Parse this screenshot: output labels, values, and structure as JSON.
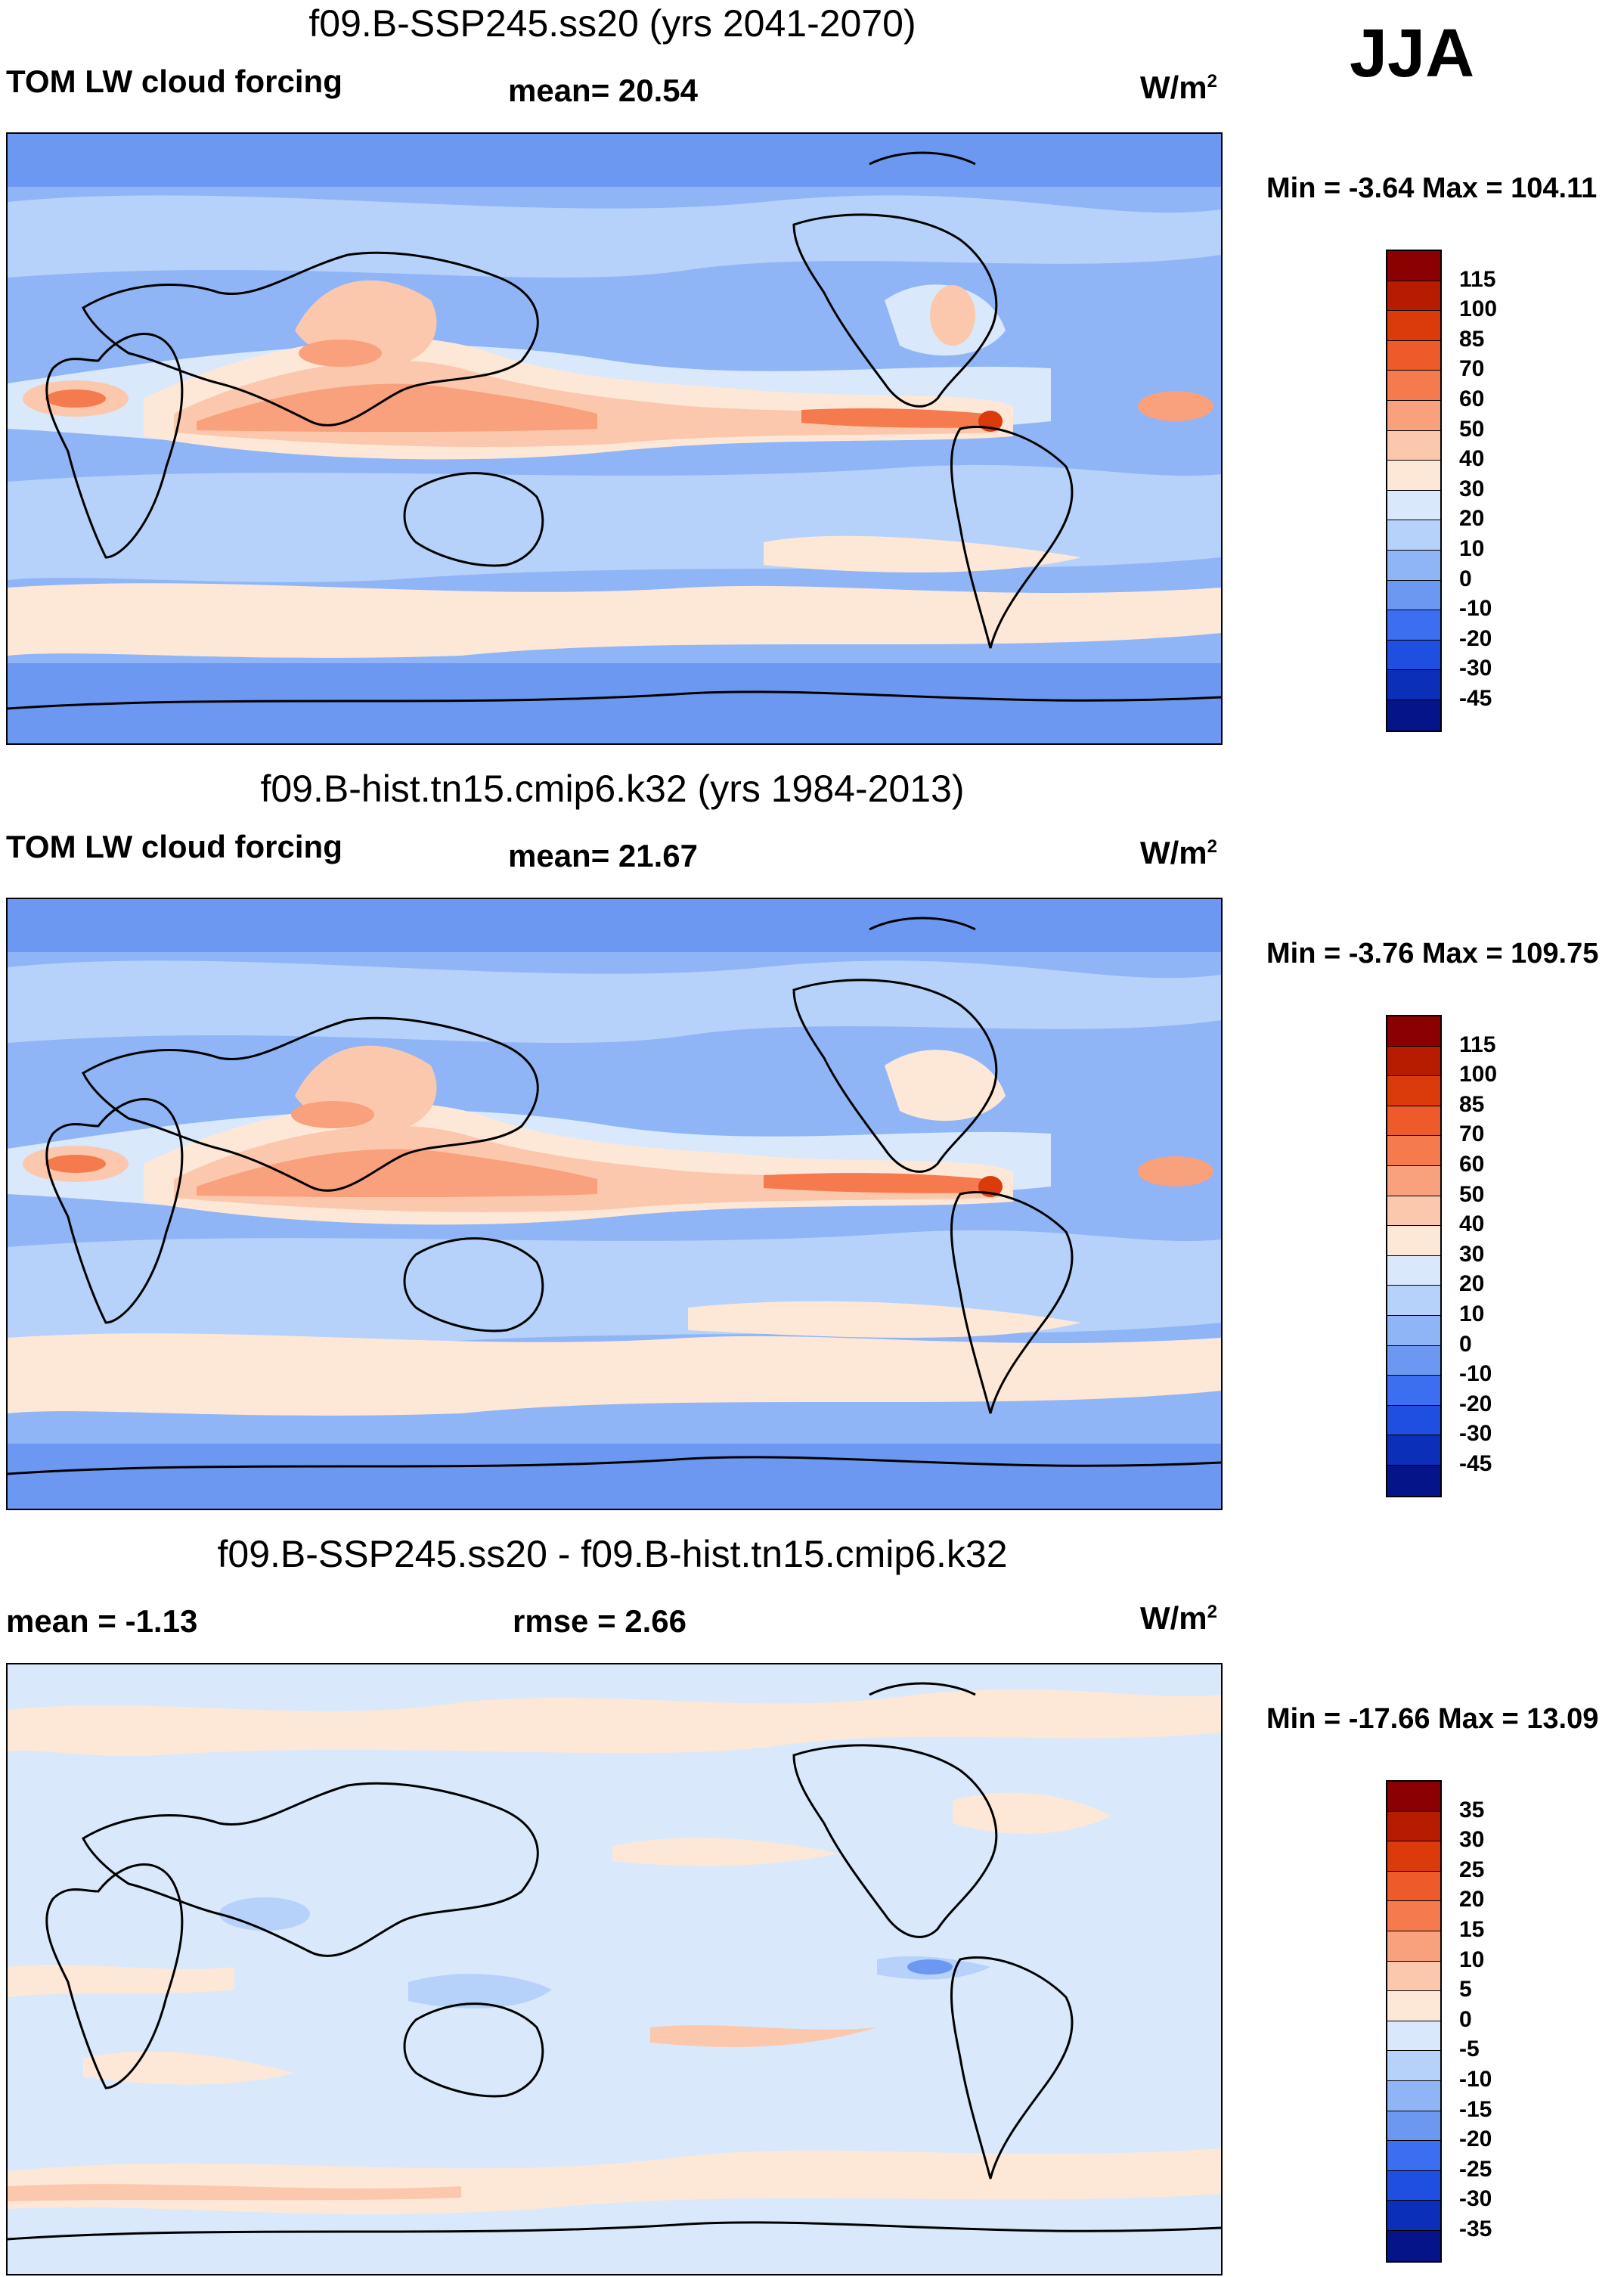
{
  "season": "JJA",
  "panels": [
    {
      "title": "f09.B-SSP245.ss20 (yrs 2041-2070)",
      "left_label": "TOM LW cloud forcing",
      "center_label": "mean=  20.54",
      "units": "W/m",
      "units_sup": "2",
      "minmax": "Min =  -3.64 Max = 104.11",
      "type": "field",
      "colorbar": {
        "labels": [
          "115",
          "100",
          "85",
          "70",
          "60",
          "50",
          "40",
          "30",
          "20",
          "10",
          "0",
          "-10",
          "-20",
          "-30",
          "-45"
        ],
        "colors": [
          "#8b0000",
          "#b71c00",
          "#db3a0a",
          "#ef5a2a",
          "#f57a4e",
          "#f9a07c",
          "#fbc8ad",
          "#fde8d8",
          "#d9e8fb",
          "#b6d2fa",
          "#8fb5f7",
          "#6d98f2",
          "#3b6ef0",
          "#1f4fe0",
          "#0b2fb8",
          "#06148a"
        ]
      }
    },
    {
      "title": "f09.B-hist.tn15.cmip6.k32 (yrs 1984-2013)",
      "left_label": "TOM LW cloud forcing",
      "center_label": "mean=  21.67",
      "units": "W/m",
      "units_sup": "2",
      "minmax": "Min =  -3.76 Max = 109.75",
      "type": "field",
      "colorbar": {
        "labels": [
          "115",
          "100",
          "85",
          "70",
          "60",
          "50",
          "40",
          "30",
          "20",
          "10",
          "0",
          "-10",
          "-20",
          "-30",
          "-45"
        ],
        "colors": [
          "#8b0000",
          "#b71c00",
          "#db3a0a",
          "#ef5a2a",
          "#f57a4e",
          "#f9a07c",
          "#fbc8ad",
          "#fde8d8",
          "#d9e8fb",
          "#b6d2fa",
          "#8fb5f7",
          "#6d98f2",
          "#3b6ef0",
          "#1f4fe0",
          "#0b2fb8",
          "#06148a"
        ]
      }
    },
    {
      "title": "f09.B-SSP245.ss20 - f09.B-hist.tn15.cmip6.k32",
      "left_label": "mean =  -1.13",
      "center_label": "rmse =    2.66",
      "units": "W/m",
      "units_sup": "2",
      "minmax": "Min = -17.66 Max =  13.09",
      "type": "diff",
      "colorbar": {
        "labels": [
          "35",
          "30",
          "25",
          "20",
          "15",
          "10",
          "5",
          "0",
          "-5",
          "-10",
          "-15",
          "-20",
          "-25",
          "-30",
          "-35"
        ],
        "colors": [
          "#8b0000",
          "#b71c00",
          "#db3a0a",
          "#ef5a2a",
          "#f57a4e",
          "#f9a07c",
          "#fbc8ad",
          "#fde8d8",
          "#d9e8fb",
          "#b6d2fa",
          "#8fb5f7",
          "#6d98f2",
          "#3b6ef0",
          "#1f4fe0",
          "#0b2fb8",
          "#06148a"
        ]
      }
    }
  ]
}
